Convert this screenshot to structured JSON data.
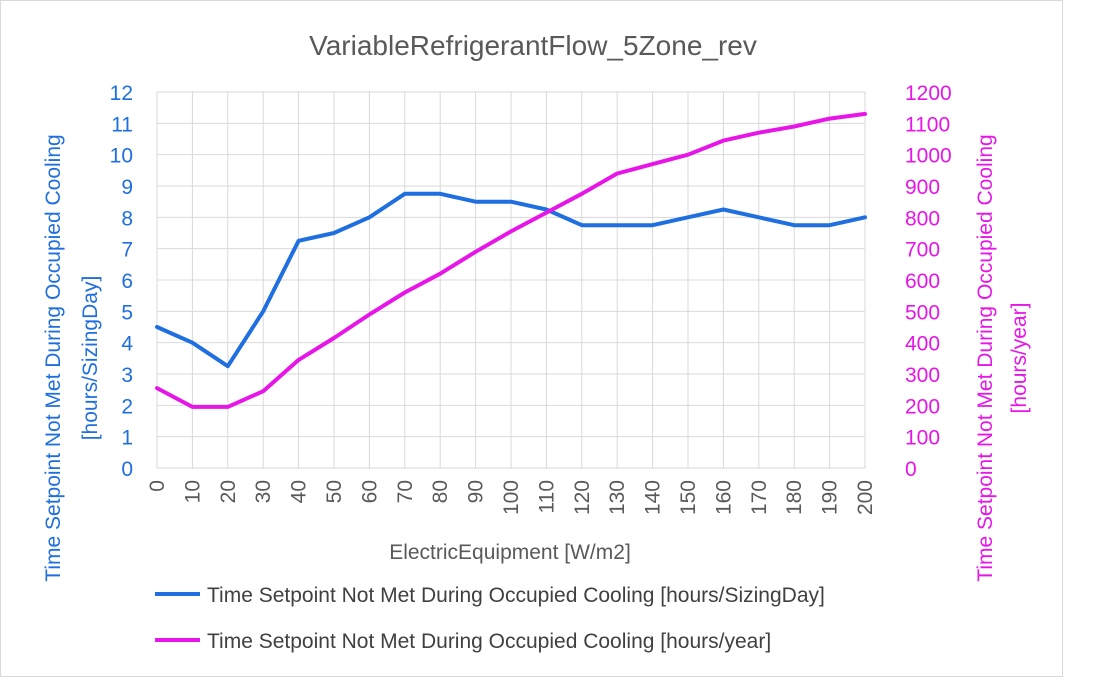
{
  "chart_data": {
    "type": "line",
    "title": "VariableRefrigerantFlow_5Zone_rev",
    "xlabel": "ElectricEquipment [W/m2]",
    "x": [
      0,
      10,
      20,
      30,
      40,
      50,
      60,
      70,
      80,
      90,
      100,
      110,
      120,
      130,
      140,
      150,
      160,
      170,
      180,
      190,
      200
    ],
    "y_left": {
      "label_line1": "Time Setpoint Not Met During Occupied Cooling",
      "label_line2": "[hours/SizingDay]",
      "ylim": [
        0,
        12
      ],
      "ticks": [
        0,
        1,
        2,
        3,
        4,
        5,
        6,
        7,
        8,
        9,
        10,
        11,
        12
      ],
      "color": "#1f6fe0"
    },
    "y_right": {
      "label_line1": "Time Setpoint Not Met During Occupied Cooling",
      "label_line2": "[hours/year]",
      "ylim": [
        0,
        1200
      ],
      "ticks": [
        0,
        100,
        200,
        300,
        400,
        500,
        600,
        700,
        800,
        900,
        1000,
        1100,
        1200
      ],
      "color": "#e815e8"
    },
    "series": [
      {
        "name": "Time Setpoint Not Met During Occupied Cooling [hours/SizingDay]",
        "axis": "left",
        "color": "#1f6fe0",
        "values": [
          4.5,
          4.0,
          3.25,
          5.0,
          7.25,
          7.5,
          8.0,
          8.75,
          8.75,
          8.5,
          8.5,
          8.25,
          7.75,
          7.75,
          7.75,
          8.0,
          8.25,
          8.0,
          7.75,
          7.75,
          8.0
        ]
      },
      {
        "name": "Time Setpoint Not Met During Occupied Cooling [hours/year]",
        "axis": "right",
        "color": "#e815e8",
        "values": [
          255,
          195,
          195,
          245,
          345,
          415,
          490,
          560,
          620,
          690,
          755,
          815,
          875,
          940,
          970,
          1000,
          1045,
          1070,
          1090,
          1115,
          1130
        ]
      }
    ],
    "grid": true,
    "legend": "bottom"
  }
}
